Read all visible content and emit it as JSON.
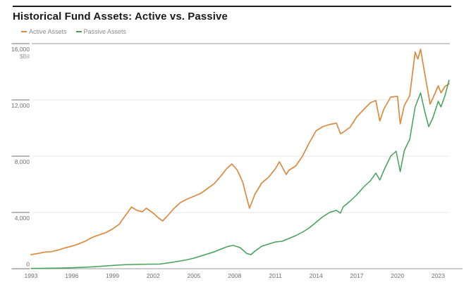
{
  "header": {
    "title": "Historical Fund Assets: Active vs. Passive"
  },
  "chart_data": {
    "type": "line",
    "title": "Historical Fund Assets: Active vs. Passive",
    "unit_label": "$Bil",
    "xlabel": "",
    "ylabel": "",
    "ylim": [
      0,
      16000
    ],
    "yticks": [
      0,
      4000,
      8000,
      12000,
      16000
    ],
    "ytick_labels": [
      "0",
      "4,000",
      "8,000",
      "12,000",
      "16,000"
    ],
    "xlim": [
      1992.9,
      2024.7
    ],
    "xticks": [
      1993,
      1996,
      1999,
      2002,
      2005,
      2008,
      2011,
      2014,
      2017,
      2020,
      2023
    ],
    "xtick_labels": [
      "1993",
      "1996",
      "1999",
      "2002",
      "2005",
      "2008",
      "2011",
      "2014",
      "2017",
      "2020",
      "2023"
    ],
    "grid": true,
    "legend_position": "top-left",
    "series": [
      {
        "name": "Active Assets",
        "color": "#DB8A3E",
        "points": [
          [
            1993.0,
            1000
          ],
          [
            1993.5,
            1080
          ],
          [
            1994.0,
            1180
          ],
          [
            1994.5,
            1210
          ],
          [
            1995.0,
            1330
          ],
          [
            1995.5,
            1480
          ],
          [
            1996.0,
            1600
          ],
          [
            1996.5,
            1760
          ],
          [
            1997.0,
            1960
          ],
          [
            1997.5,
            2220
          ],
          [
            1998.0,
            2400
          ],
          [
            1998.5,
            2560
          ],
          [
            1999.0,
            2820
          ],
          [
            1999.5,
            3160
          ],
          [
            2000.0,
            3850
          ],
          [
            2000.4,
            4380
          ],
          [
            2000.8,
            4150
          ],
          [
            2001.2,
            4050
          ],
          [
            2001.5,
            4300
          ],
          [
            2002.0,
            3950
          ],
          [
            2002.4,
            3600
          ],
          [
            2002.7,
            3400
          ],
          [
            2003.0,
            3700
          ],
          [
            2003.5,
            4250
          ],
          [
            2004.0,
            4700
          ],
          [
            2004.5,
            4950
          ],
          [
            2005.0,
            5150
          ],
          [
            2005.5,
            5350
          ],
          [
            2006.0,
            5700
          ],
          [
            2006.5,
            6050
          ],
          [
            2007.0,
            6600
          ],
          [
            2007.4,
            7100
          ],
          [
            2007.8,
            7450
          ],
          [
            2008.2,
            7000
          ],
          [
            2008.6,
            6150
          ],
          [
            2008.9,
            5000
          ],
          [
            2009.1,
            4300
          ],
          [
            2009.5,
            5300
          ],
          [
            2010.0,
            6100
          ],
          [
            2010.5,
            6500
          ],
          [
            2011.0,
            7100
          ],
          [
            2011.3,
            7600
          ],
          [
            2011.8,
            6700
          ],
          [
            2012.0,
            7000
          ],
          [
            2012.5,
            7300
          ],
          [
            2013.0,
            8000
          ],
          [
            2013.5,
            8950
          ],
          [
            2014.0,
            9800
          ],
          [
            2014.5,
            10100
          ],
          [
            2015.0,
            10250
          ],
          [
            2015.5,
            10350
          ],
          [
            2015.8,
            9600
          ],
          [
            2016.0,
            9700
          ],
          [
            2016.5,
            10050
          ],
          [
            2017.0,
            10800
          ],
          [
            2017.5,
            11300
          ],
          [
            2018.0,
            11800
          ],
          [
            2018.4,
            11950
          ],
          [
            2018.7,
            10500
          ],
          [
            2019.0,
            11350
          ],
          [
            2019.5,
            12200
          ],
          [
            2020.0,
            12250
          ],
          [
            2020.2,
            10300
          ],
          [
            2020.5,
            11600
          ],
          [
            2020.9,
            12300
          ],
          [
            2021.3,
            15400
          ],
          [
            2021.5,
            14900
          ],
          [
            2021.7,
            15600
          ],
          [
            2022.0,
            13900
          ],
          [
            2022.4,
            11700
          ],
          [
            2022.6,
            12100
          ],
          [
            2023.0,
            13000
          ],
          [
            2023.2,
            12500
          ],
          [
            2023.5,
            12950
          ],
          [
            2023.8,
            13150
          ]
        ]
      },
      {
        "name": "Passive Assets",
        "color": "#43A15A",
        "points": [
          [
            1993.0,
            20
          ],
          [
            1993.5,
            25
          ],
          [
            1994.0,
            30
          ],
          [
            1994.5,
            35
          ],
          [
            1995.0,
            45
          ],
          [
            1995.5,
            55
          ],
          [
            1996.0,
            70
          ],
          [
            1996.5,
            85
          ],
          [
            1997.0,
            105
          ],
          [
            1997.5,
            130
          ],
          [
            1998.0,
            160
          ],
          [
            1998.5,
            195
          ],
          [
            1999.0,
            230
          ],
          [
            1999.5,
            260
          ],
          [
            2000.0,
            290
          ],
          [
            2000.5,
            300
          ],
          [
            2001.0,
            310
          ],
          [
            2001.5,
            320
          ],
          [
            2002.0,
            325
          ],
          [
            2002.5,
            330
          ],
          [
            2003.0,
            400
          ],
          [
            2003.5,
            470
          ],
          [
            2004.0,
            550
          ],
          [
            2004.5,
            640
          ],
          [
            2005.0,
            750
          ],
          [
            2005.5,
            900
          ],
          [
            2006.0,
            1050
          ],
          [
            2006.5,
            1200
          ],
          [
            2007.0,
            1400
          ],
          [
            2007.5,
            1580
          ],
          [
            2007.9,
            1660
          ],
          [
            2008.4,
            1500
          ],
          [
            2008.9,
            1080
          ],
          [
            2009.2,
            1000
          ],
          [
            2009.5,
            1250
          ],
          [
            2010.0,
            1600
          ],
          [
            2010.5,
            1750
          ],
          [
            2011.0,
            1900
          ],
          [
            2011.5,
            1950
          ],
          [
            2012.0,
            2150
          ],
          [
            2012.5,
            2350
          ],
          [
            2013.0,
            2600
          ],
          [
            2013.5,
            2900
          ],
          [
            2014.0,
            3300
          ],
          [
            2014.5,
            3700
          ],
          [
            2015.0,
            4000
          ],
          [
            2015.5,
            4150
          ],
          [
            2015.8,
            3950
          ],
          [
            2016.0,
            4400
          ],
          [
            2016.5,
            4800
          ],
          [
            2017.0,
            5250
          ],
          [
            2017.5,
            5800
          ],
          [
            2018.0,
            6250
          ],
          [
            2018.4,
            6800
          ],
          [
            2018.7,
            6300
          ],
          [
            2019.0,
            7000
          ],
          [
            2019.5,
            8000
          ],
          [
            2019.9,
            8350
          ],
          [
            2020.2,
            6900
          ],
          [
            2020.5,
            8400
          ],
          [
            2020.9,
            9200
          ],
          [
            2021.3,
            11500
          ],
          [
            2021.7,
            12500
          ],
          [
            2022.0,
            11200
          ],
          [
            2022.3,
            10100
          ],
          [
            2022.6,
            10700
          ],
          [
            2023.0,
            11900
          ],
          [
            2023.2,
            11500
          ],
          [
            2023.5,
            12300
          ],
          [
            2023.8,
            13400
          ]
        ]
      }
    ],
    "colors": {
      "active_line": "#DB8A3E",
      "passive_line": "#43A15A",
      "top_rule": "#1e1e1e",
      "axis_line": "#9a9a9a",
      "gridline": "#e7e7e7",
      "tick_mark": "#6e6e6e",
      "tick_label": "#6e6e6e",
      "unit_label": "#9a9a9a",
      "legend_text": "#8c8c8c",
      "background": "#ffffff"
    }
  }
}
